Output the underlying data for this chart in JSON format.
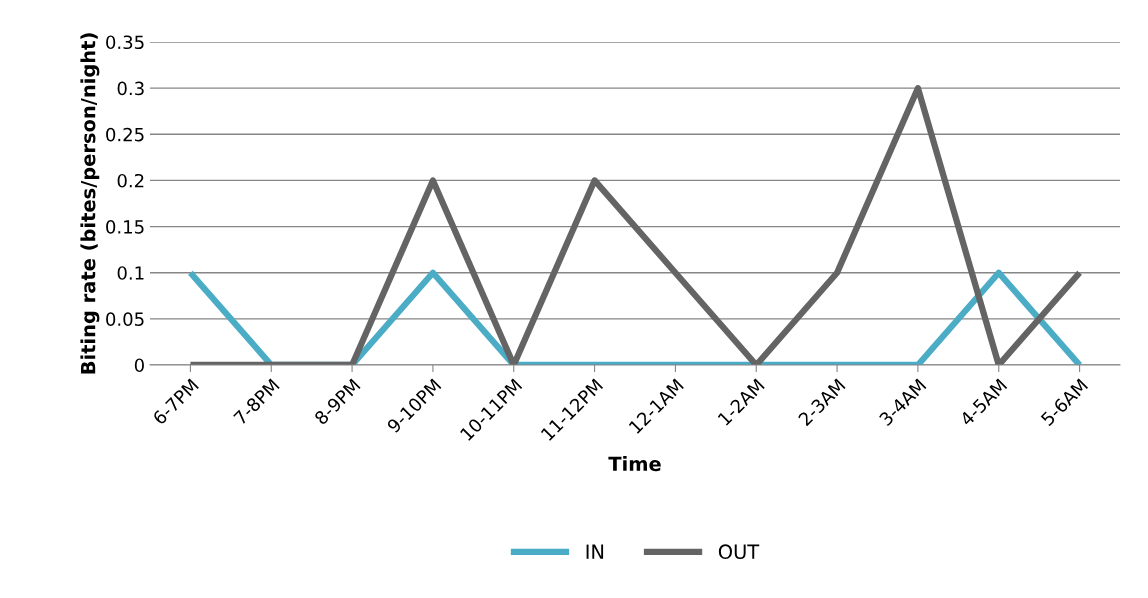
{
  "chart_data": {
    "type": "line",
    "xlabel": "Time",
    "ylabel": "Biting rate (bites/person/night)",
    "categories": [
      "6-7PM",
      "7-8PM",
      "8-9PM",
      "9-10PM",
      "10-11PM",
      "11-12PM",
      "12-1AM",
      "1-2AM",
      "2-3AM",
      "3-4AM",
      "4-5AM",
      "5-6AM"
    ],
    "series": [
      {
        "name": "IN",
        "color": "#4bacc6",
        "values": [
          0.1,
          0,
          0,
          0.1,
          0,
          0,
          0,
          0,
          0,
          0,
          0.1,
          0
        ]
      },
      {
        "name": "OUT",
        "color": "#646464",
        "values": [
          0,
          0,
          0,
          0.2,
          0,
          0.2,
          0.1,
          0,
          0.1,
          0.3,
          0,
          0.1
        ]
      }
    ],
    "ylim": [
      0,
      0.35
    ],
    "yticks": [
      0,
      0.05,
      0.1,
      0.15,
      0.2,
      0.25,
      0.3,
      0.35
    ],
    "grid": "y",
    "legend": "bottom",
    "marker": "none",
    "line_style": "solid"
  }
}
